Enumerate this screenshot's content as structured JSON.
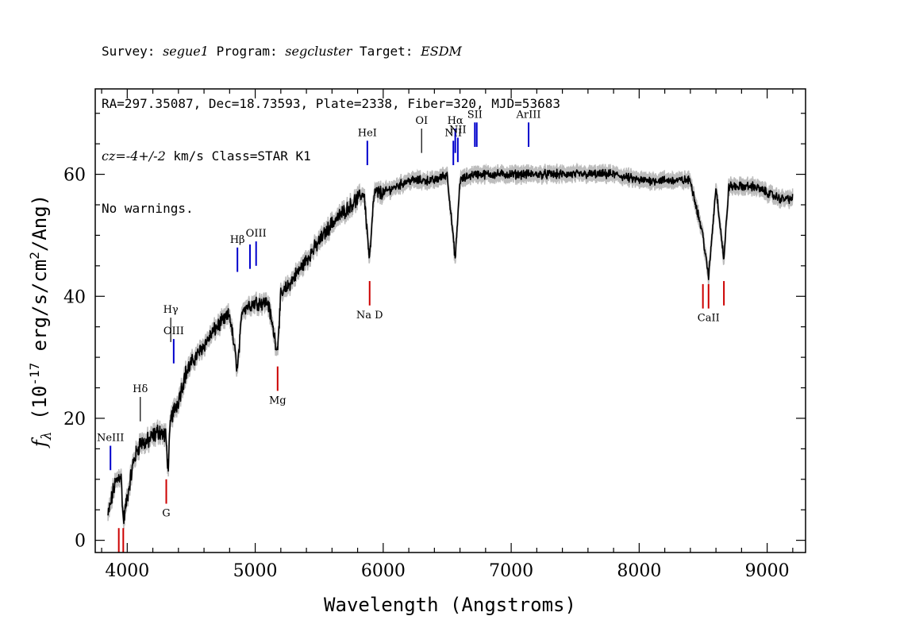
{
  "header": {
    "survey_label": "Survey:",
    "survey": "segue1",
    "program_label": "Program:",
    "program": "segcluster",
    "target_label": "Target:",
    "target": "ESDM",
    "line2": "RA=297.35087, Dec=18.73593, Plate=2338, Fiber=320, MJD=53683",
    "cz_prefix": "cz=",
    "cz_value": "-4+/-2",
    "cz_suffix": " km/s Class=STAR K1",
    "line4": "No warnings."
  },
  "chart_data": {
    "type": "line",
    "xlabel": "Wavelength (Angstroms)",
    "ylabel": "f_λ (10^-17 erg/s/cm^2/Ang)",
    "xlim": [
      3750,
      9300
    ],
    "ylim": [
      -2,
      74
    ],
    "x_ticks": [
      4000,
      5000,
      6000,
      7000,
      8000,
      9000
    ],
    "y_ticks": [
      0,
      20,
      40,
      60
    ],
    "grid": false,
    "series": [
      {
        "color": "#000000",
        "x": [
          3850,
          3900,
          3950,
          3970,
          4000,
          4050,
          4100,
          4150,
          4200,
          4250,
          4300,
          4320,
          4340,
          4400,
          4450,
          4500,
          4600,
          4700,
          4800,
          4861,
          4900,
          5000,
          5100,
          5172,
          5200,
          5300,
          5400,
          5500,
          5600,
          5700,
          5800,
          5850,
          5893,
          5930,
          6000,
          6100,
          6200,
          6300,
          6400,
          6500,
          6563,
          6600,
          6700,
          6800,
          6900,
          7000,
          7200,
          7400,
          7600,
          7800,
          8000,
          8200,
          8400,
          8498,
          8542,
          8600,
          8662,
          8700,
          8800,
          8900,
          9000,
          9100,
          9200
        ],
        "y": [
          4,
          9,
          11,
          3,
          7,
          13,
          16,
          16,
          17,
          18,
          17,
          12,
          20,
          23,
          27,
          29,
          32,
          35,
          37,
          28,
          38,
          39,
          39,
          31,
          40,
          43,
          46,
          49,
          52,
          54,
          56,
          57,
          46,
          57,
          57,
          58,
          59,
          59,
          59,
          60,
          46,
          59,
          60,
          60,
          60,
          60,
          60,
          60,
          60,
          60,
          59,
          59,
          59,
          50,
          43,
          58,
          46,
          58,
          58,
          58,
          57,
          56,
          56
        ]
      }
    ],
    "emission_lines": [
      {
        "name": "NeIII",
        "wavelength": 3869,
        "y1": 11.5,
        "y2": 15.5,
        "color": "#0000cc"
      },
      {
        "name": "Hδ",
        "wavelength": 4102,
        "y1": 19.5,
        "y2": 23.5,
        "color": "#000000"
      },
      {
        "name": "Hγ",
        "wavelength": 4340,
        "y1": 32.5,
        "y2": 36.5,
        "color": "#000000"
      },
      {
        "name": "OIII",
        "wavelength": 4363,
        "y1": 29,
        "y2": 33,
        "color": "#0000cc"
      },
      {
        "name": "Hβ",
        "wavelength": 4861,
        "y1": 44,
        "y2": 48,
        "color": "#0000cc"
      },
      {
        "name": "",
        "wavelength": 4959,
        "y1": 44.5,
        "y2": 48.5,
        "color": "#0000cc"
      },
      {
        "name": "OIII",
        "wavelength": 5007,
        "y1": 45,
        "y2": 49,
        "color": "#0000cc"
      },
      {
        "name": "HeI",
        "wavelength": 5876,
        "y1": 61.5,
        "y2": 65.5,
        "color": "#0000cc"
      },
      {
        "name": "OI",
        "wavelength": 6300,
        "y1": 63.5,
        "y2": 67.5,
        "color": "#000000"
      },
      {
        "name": "NII",
        "wavelength": 6548,
        "y1": 61.5,
        "y2": 65.5,
        "color": "#0000cc"
      },
      {
        "name": "Hα",
        "wavelength": 6563,
        "y1": 63.5,
        "y2": 67.5,
        "color": "#0000cc"
      },
      {
        "name": "NII",
        "wavelength": 6583,
        "y1": 62,
        "y2": 66,
        "color": "#0000cc"
      },
      {
        "name": "SII",
        "wavelength": 6716,
        "y1": 64.5,
        "y2": 68.5,
        "color": "#0000cc"
      },
      {
        "name": "",
        "wavelength": 6731,
        "y1": 64.5,
        "y2": 68.5,
        "color": "#0000cc"
      },
      {
        "name": "ArIII",
        "wavelength": 7136,
        "y1": 64.5,
        "y2": 68.5,
        "color": "#0000cc"
      }
    ],
    "absorption_lines": [
      {
        "name": "",
        "wavelength": 3934,
        "y1": -2,
        "y2": 2,
        "color": "#cc0000"
      },
      {
        "name": "",
        "wavelength": 3969,
        "y1": -2,
        "y2": 2,
        "color": "#cc0000"
      },
      {
        "name": "G",
        "wavelength": 4305,
        "y1": 6,
        "y2": 10,
        "color": "#cc0000"
      },
      {
        "name": "Mg",
        "wavelength": 5175,
        "y1": 24.5,
        "y2": 28.5,
        "color": "#cc0000"
      },
      {
        "name": "Na D",
        "wavelength": 5894,
        "y1": 38.5,
        "y2": 42.5,
        "color": "#cc0000"
      },
      {
        "name": "",
        "wavelength": 8498,
        "y1": 38,
        "y2": 42,
        "color": "#cc0000"
      },
      {
        "name": "CaII",
        "wavelength": 8542,
        "y1": 38,
        "y2": 42,
        "color": "#cc0000"
      },
      {
        "name": "",
        "wavelength": 8662,
        "y1": 38.5,
        "y2": 42.5,
        "color": "#cc0000"
      }
    ]
  }
}
